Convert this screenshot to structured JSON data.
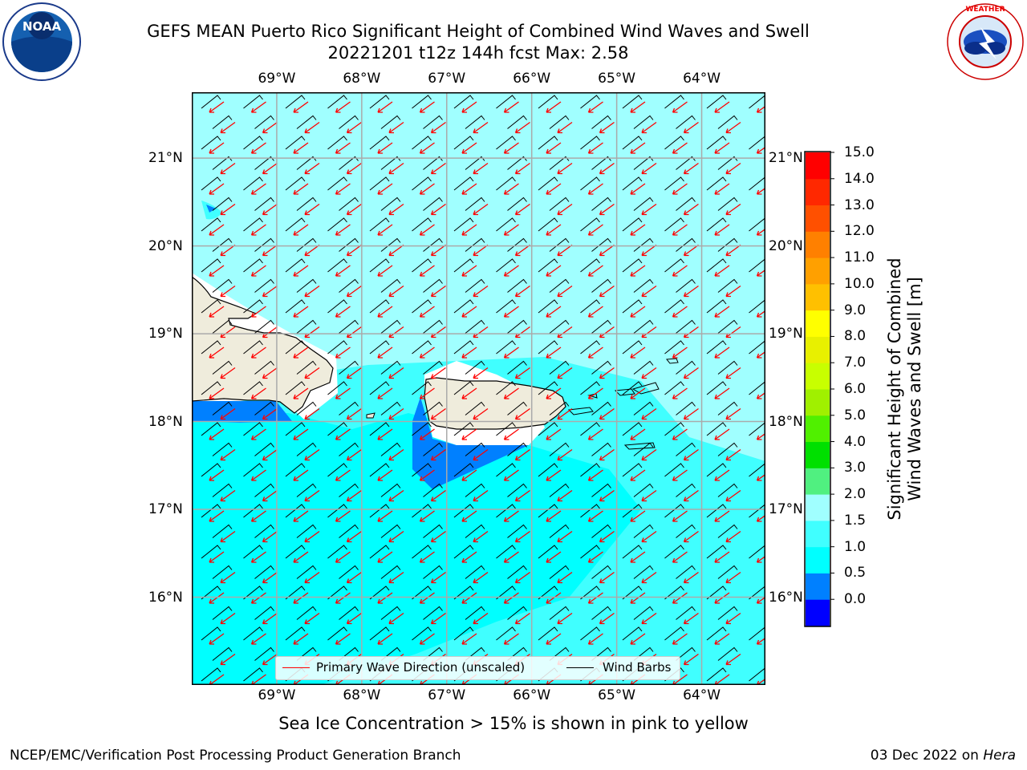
{
  "title": {
    "line1": "GEFS MEAN Puerto Rico Significant Height of Combined Wind Waves and Swell",
    "line2": "20221201 t12z 144h fcst   Max: 2.58"
  },
  "logos": {
    "left": "noaa-logo",
    "right": "nws-logo"
  },
  "map": {
    "lon_ticks": [
      "69°W",
      "68°W",
      "67°W",
      "66°W",
      "65°W",
      "64°W"
    ],
    "lat_ticks": [
      "21°N",
      "20°N",
      "19°N",
      "18°N",
      "17°N",
      "16°N"
    ],
    "lon_range": [
      -70.0,
      -63.25
    ],
    "lat_range": [
      15.0,
      21.75
    ],
    "grid": true,
    "land_color": "#efecdc"
  },
  "legend": {
    "items": [
      {
        "label": "Primary Wave Direction (unscaled)",
        "color": "#ff0000"
      },
      {
        "label": "Wind Barbs",
        "color": "#000000"
      }
    ]
  },
  "colorbar": {
    "label_line1": "Significant Height of Combined",
    "label_line2": "Wind Waves and Swell [m]",
    "ticks": [
      "15.0",
      "14.0",
      "13.0",
      "12.0",
      "11.0",
      "10.0",
      "9.0",
      "8.0",
      "7.0",
      "6.0",
      "5.0",
      "4.0",
      "3.0",
      "2.0",
      "1.5",
      "1.0",
      "0.5",
      "0.0"
    ],
    "colors": [
      "#0000ff",
      "#0080ff",
      "#00ffff",
      "#40ffff",
      "#a0ffff",
      "#50f080",
      "#00e000",
      "#50f000",
      "#a0f000",
      "#c8ff00",
      "#e8f000",
      "#ffff00",
      "#ffc000",
      "#ffa000",
      "#ff8000",
      "#ff5000",
      "#ff2800",
      "#ff0000"
    ]
  },
  "note": "Sea Ice Concentration > 15% is shown in pink to yellow",
  "footer": {
    "left": "NCEP/EMC/Verification Post Processing Product Generation Branch",
    "right_date": "03 Dec 2022 on ",
    "right_host": "Hera"
  }
}
